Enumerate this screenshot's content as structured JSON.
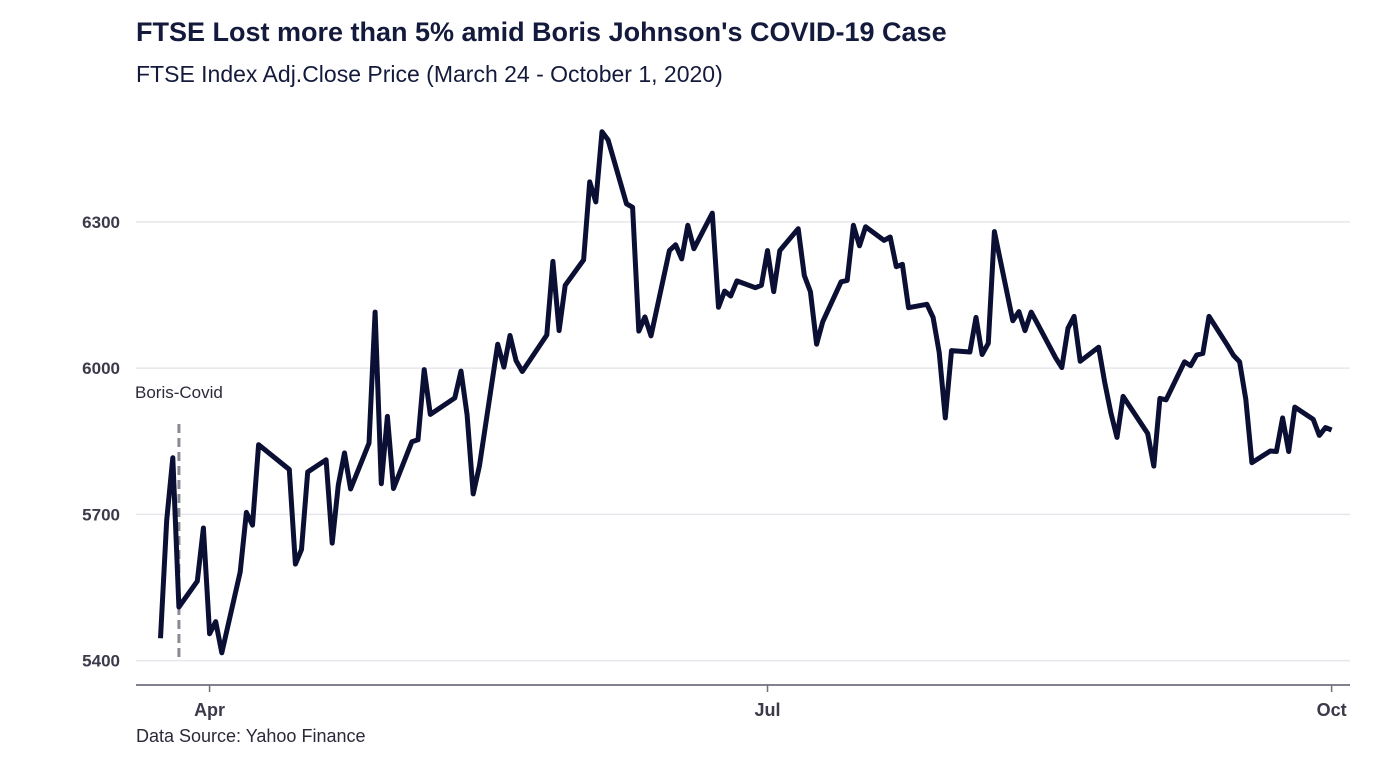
{
  "chart_data": {
    "type": "line",
    "title": "FTSE Lost more than 5% amid Boris Johnson's COVID-19 Case",
    "subtitle": "FTSE Index Adj.Close Price (March 24 - October 1, 2020)",
    "caption": "Data Source: Yahoo Finance",
    "xlabel": "",
    "ylabel": "",
    "x_range": [
      "2020-03-20",
      "2020-10-04"
    ],
    "ylim": [
      5350,
      6550
    ],
    "y_ticks": [
      5400,
      5700,
      6000,
      6300
    ],
    "y_tick_labels": [
      "5400",
      "5700",
      "6000",
      "6300"
    ],
    "x_ticks": [
      "2020-04-01",
      "2020-07-01",
      "2020-10-01"
    ],
    "x_tick_labels": [
      "Apr",
      "Jul",
      "Oct"
    ],
    "grid": true,
    "line_color": "#0b0f33",
    "annotation": {
      "date": "2020-03-27",
      "label": "Boris-Covid",
      "color": "#8a8a95"
    },
    "series": [
      {
        "dates": [
          "2020-03-24",
          "2020-03-25",
          "2020-03-26",
          "2020-03-27",
          "2020-03-30",
          "2020-03-31",
          "2020-04-01",
          "2020-04-02",
          "2020-04-03",
          "2020-04-06",
          "2020-04-07",
          "2020-04-08",
          "2020-04-09",
          "2020-04-14",
          "2020-04-15",
          "2020-04-16",
          "2020-04-17",
          "2020-04-20",
          "2020-04-21",
          "2020-04-22",
          "2020-04-23",
          "2020-04-24",
          "2020-04-27",
          "2020-04-28",
          "2020-04-29",
          "2020-04-30",
          "2020-05-01",
          "2020-05-04",
          "2020-05-05",
          "2020-05-06",
          "2020-05-07",
          "2020-05-11",
          "2020-05-12",
          "2020-05-13",
          "2020-05-14",
          "2020-05-15",
          "2020-05-18",
          "2020-05-19",
          "2020-05-20",
          "2020-05-21",
          "2020-05-22",
          "2020-05-26",
          "2020-05-27",
          "2020-05-28",
          "2020-05-29",
          "2020-06-01",
          "2020-06-02",
          "2020-06-03",
          "2020-06-04",
          "2020-06-05",
          "2020-06-08",
          "2020-06-09",
          "2020-06-10",
          "2020-06-11",
          "2020-06-12",
          "2020-06-15",
          "2020-06-16",
          "2020-06-17",
          "2020-06-18",
          "2020-06-19",
          "2020-06-22",
          "2020-06-23",
          "2020-06-24",
          "2020-06-25",
          "2020-06-26",
          "2020-06-29",
          "2020-06-30",
          "2020-07-01",
          "2020-07-02",
          "2020-07-03",
          "2020-07-06",
          "2020-07-07",
          "2020-07-08",
          "2020-07-09",
          "2020-07-10",
          "2020-07-13",
          "2020-07-14",
          "2020-07-15",
          "2020-07-16",
          "2020-07-17",
          "2020-07-20",
          "2020-07-21",
          "2020-07-22",
          "2020-07-23",
          "2020-07-24",
          "2020-07-27",
          "2020-07-28",
          "2020-07-29",
          "2020-07-30",
          "2020-07-31",
          "2020-08-03",
          "2020-08-04",
          "2020-08-05",
          "2020-08-06",
          "2020-08-07",
          "2020-08-10",
          "2020-08-11",
          "2020-08-12",
          "2020-08-13",
          "2020-08-14",
          "2020-08-17",
          "2020-08-18",
          "2020-08-19",
          "2020-08-20",
          "2020-08-21",
          "2020-08-24",
          "2020-08-25",
          "2020-08-26",
          "2020-08-27",
          "2020-08-28",
          "2020-09-01",
          "2020-09-02",
          "2020-09-03",
          "2020-09-04",
          "2020-09-07",
          "2020-09-08",
          "2020-09-09",
          "2020-09-10",
          "2020-09-11",
          "2020-09-14",
          "2020-09-15",
          "2020-09-16",
          "2020-09-17",
          "2020-09-18",
          "2020-09-21",
          "2020-09-22",
          "2020-09-23",
          "2020-09-24",
          "2020-09-25",
          "2020-09-28",
          "2020-09-29",
          "2020-09-30",
          "2020-10-01"
        ],
        "values": [
          5446,
          5688,
          5816,
          5510,
          5563,
          5672,
          5455,
          5480,
          5416,
          5582,
          5704,
          5678,
          5843,
          5792,
          5598,
          5628,
          5787,
          5812,
          5641,
          5760,
          5826,
          5752,
          5846,
          6115,
          5763,
          5901,
          5753,
          5849,
          5853,
          5997,
          5905,
          5939,
          5994,
          5904,
          5742,
          5799,
          6049,
          6002,
          6067,
          6015,
          5993,
          6068,
          6219,
          6077,
          6170,
          6222,
          6382,
          6341,
          6485,
          6468,
          6337,
          6330,
          6076,
          6105,
          6066,
          6241,
          6253,
          6224,
          6293,
          6245,
          6318,
          6125,
          6158,
          6148,
          6179,
          6165,
          6170,
          6241,
          6157,
          6241,
          6286,
          6190,
          6157,
          6049,
          6095,
          6177,
          6180,
          6293,
          6251,
          6290,
          6262,
          6269,
          6208,
          6213,
          6124,
          6131,
          6104,
          6032,
          5898,
          6036,
          6033,
          6104,
          6028,
          6051,
          6280,
          6097,
          6116,
          6077,
          6115,
          6092,
          6021,
          6001,
          6082,
          6106,
          6014,
          6043,
          5971,
          5908,
          5858,
          5942,
          5866,
          5799,
          5938,
          5935,
          6013,
          6005,
          6027,
          6030,
          6106,
          6047,
          6026,
          6013,
          5936,
          5806,
          5830,
          5829,
          5898,
          5829,
          5920,
          5895,
          5862,
          5878,
          5873
        ]
      }
    ]
  }
}
